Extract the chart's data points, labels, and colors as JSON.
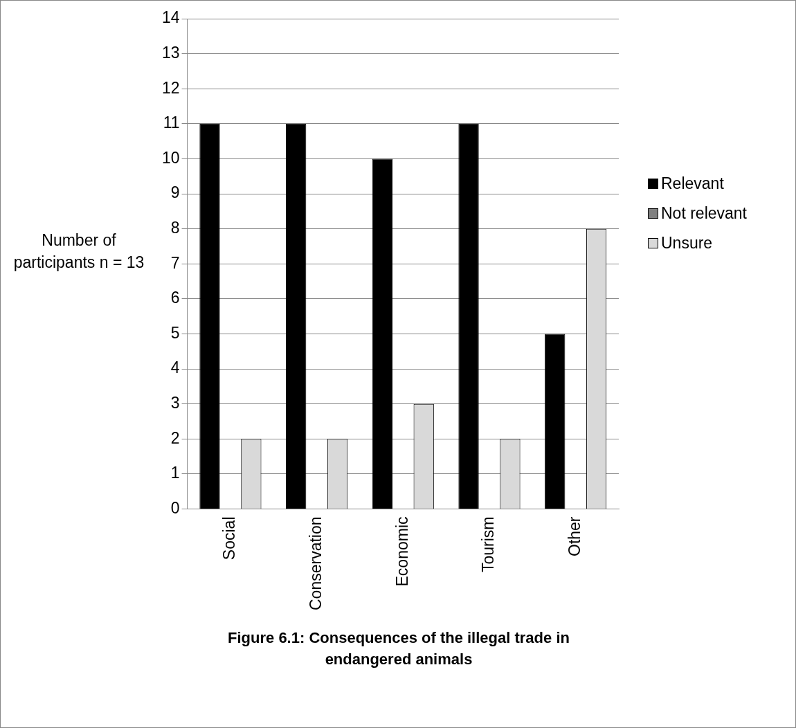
{
  "chart_data": {
    "type": "bar",
    "title": "Figure 6.1: Consequences of the illegal trade in endangered animals",
    "ylabel": "Number of participants n = 13",
    "categories": [
      "Social",
      "Conservation",
      "Economic",
      "Tourism",
      "Other"
    ],
    "series": [
      {
        "name": "Relevant",
        "color": "#000000",
        "values": [
          11,
          11,
          10,
          11,
          5
        ]
      },
      {
        "name": "Not relevant",
        "color": "#808080",
        "values": [
          0,
          0,
          0,
          0,
          0
        ]
      },
      {
        "name": "Unsure",
        "color": "#d9d9d9",
        "values": [
          2,
          2,
          3,
          2,
          8
        ]
      }
    ],
    "ylim": [
      0,
      14
    ],
    "yticks": [
      0,
      1,
      2,
      3,
      4,
      5,
      6,
      7,
      8,
      9,
      10,
      11,
      12,
      13,
      14
    ],
    "grid": "y",
    "legend": "right"
  }
}
